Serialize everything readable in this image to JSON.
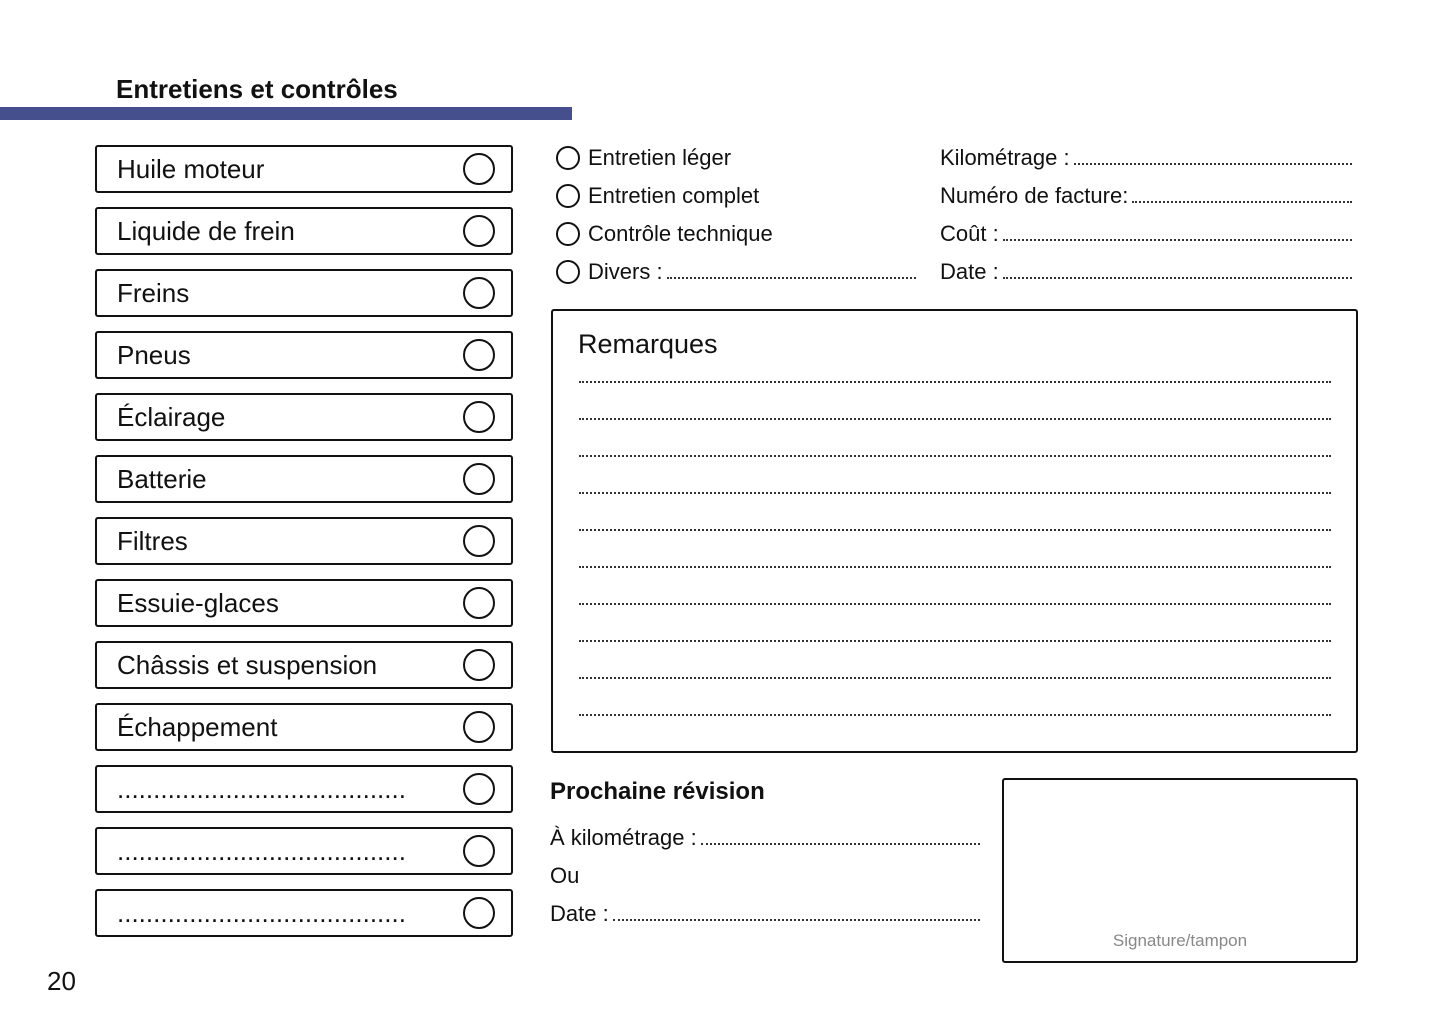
{
  "header": {
    "title": "Entretiens et contrôles",
    "accent_color": "#454f8e"
  },
  "checklist": [
    "Huile moteur",
    "Liquide de frein",
    "Freins",
    "Pneus",
    "Éclairage",
    "Batterie",
    "Filtres",
    "Essuie-glaces",
    "Châssis et suspension",
    "Échappement",
    "........................................",
    "........................................",
    "........................................"
  ],
  "service_type": [
    "Entretien léger",
    "Entretien complet",
    "Contrôle technique",
    "Divers :"
  ],
  "details": [
    "Kilométrage :",
    "Numéro de facture:",
    "Coût :",
    "Date :"
  ],
  "remarks": {
    "title": "Remarques"
  },
  "next_service": {
    "title": "Prochaine révision",
    "km": "À kilométrage :",
    "or": "Ou",
    "date": "Date :"
  },
  "signature": {
    "label": "Signature/tampon"
  },
  "page_number": "20"
}
